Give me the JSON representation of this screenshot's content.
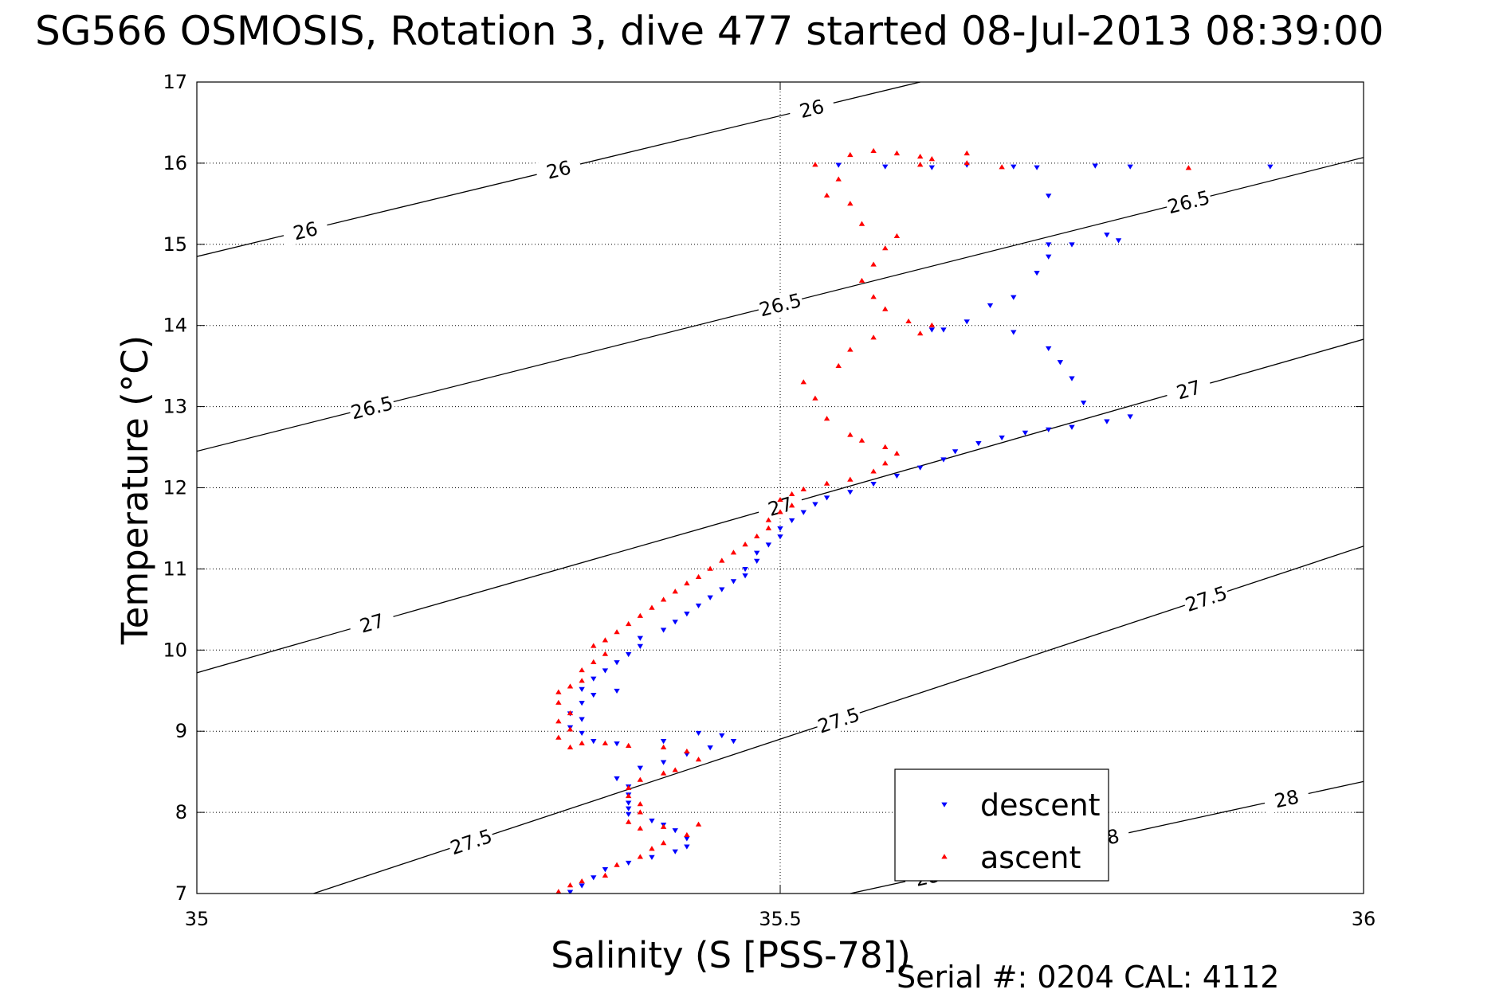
{
  "title": "SG566 OSMOSIS, Rotation 3, dive 477 started 08-Jul-2013 08:39:00",
  "footer": "Serial #: 0204  CAL: 4112",
  "colors": {
    "descent": "#0000ff",
    "ascent": "#ff0000",
    "axis": "#000000",
    "grid": "#000000"
  },
  "chart_data": {
    "type": "scatter",
    "xlabel": "Salinity (S [PSS-78])",
    "ylabel": "Temperature (°C)",
    "xlim": [
      35,
      36
    ],
    "ylim": [
      7,
      17
    ],
    "x_ticks": [
      35,
      35.5,
      36
    ],
    "x_tick_labels": [
      "35",
      "35.5",
      "36"
    ],
    "y_ticks": [
      7,
      8,
      9,
      10,
      11,
      12,
      13,
      14,
      15,
      16,
      17
    ],
    "y_tick_labels": [
      "7",
      "8",
      "9",
      "10",
      "11",
      "12",
      "13",
      "14",
      "15",
      "16",
      "17"
    ],
    "grid": true,
    "legend_position": "bottom-right",
    "density_contours": [
      {
        "sigma": 26,
        "label": "26",
        "points": [
          [
            35,
            14.85
          ],
          [
            35.62,
            17
          ]
        ]
      },
      {
        "sigma": 26.5,
        "label": "26.5",
        "points": [
          [
            35,
            12.45
          ],
          [
            36,
            16.07
          ]
        ]
      },
      {
        "sigma": 27,
        "label": "27",
        "points": [
          [
            35,
            9.72
          ],
          [
            36,
            13.83
          ]
        ]
      },
      {
        "sigma": 27.5,
        "label": "27.5",
        "points": [
          [
            35.1,
            7
          ],
          [
            36,
            11.28
          ]
        ]
      },
      {
        "sigma": 28,
        "label": "28",
        "points": [
          [
            35.56,
            7
          ],
          [
            36,
            8.38
          ]
        ]
      }
    ],
    "series": [
      {
        "name": "descent",
        "marker": "triangle-down",
        "points": [
          [
            35.32,
            7.02
          ],
          [
            35.33,
            7.1
          ],
          [
            35.34,
            7.2
          ],
          [
            35.35,
            7.3
          ],
          [
            35.37,
            7.38
          ],
          [
            35.39,
            7.45
          ],
          [
            35.41,
            7.52
          ],
          [
            35.42,
            7.58
          ],
          [
            35.42,
            7.68
          ],
          [
            35.41,
            7.78
          ],
          [
            35.4,
            7.85
          ],
          [
            35.39,
            7.9
          ],
          [
            35.37,
            7.98
          ],
          [
            35.37,
            8.05
          ],
          [
            35.37,
            8.12
          ],
          [
            35.37,
            8.22
          ],
          [
            35.37,
            8.32
          ],
          [
            35.36,
            8.42
          ],
          [
            35.38,
            8.55
          ],
          [
            35.4,
            8.62
          ],
          [
            35.42,
            8.72
          ],
          [
            35.44,
            8.8
          ],
          [
            35.46,
            8.88
          ],
          [
            35.45,
            8.95
          ],
          [
            35.43,
            8.98
          ],
          [
            35.4,
            8.88
          ],
          [
            35.36,
            8.85
          ],
          [
            35.34,
            8.88
          ],
          [
            35.33,
            8.98
          ],
          [
            35.32,
            9.05
          ],
          [
            35.33,
            9.15
          ],
          [
            35.32,
            9.22
          ],
          [
            35.33,
            9.35
          ],
          [
            35.34,
            9.45
          ],
          [
            35.36,
            9.5
          ],
          [
            35.33,
            9.52
          ],
          [
            35.34,
            9.65
          ],
          [
            35.35,
            9.75
          ],
          [
            35.36,
            9.85
          ],
          [
            35.37,
            9.95
          ],
          [
            35.38,
            10.05
          ],
          [
            35.38,
            10.15
          ],
          [
            35.4,
            10.25
          ],
          [
            35.41,
            10.35
          ],
          [
            35.42,
            10.45
          ],
          [
            35.43,
            10.55
          ],
          [
            35.44,
            10.65
          ],
          [
            35.45,
            10.75
          ],
          [
            35.46,
            10.85
          ],
          [
            35.47,
            10.92
          ],
          [
            35.47,
            11.0
          ],
          [
            35.48,
            11.1
          ],
          [
            35.48,
            11.2
          ],
          [
            35.49,
            11.3
          ],
          [
            35.5,
            11.4
          ],
          [
            35.5,
            11.5
          ],
          [
            35.51,
            11.6
          ],
          [
            35.52,
            11.7
          ],
          [
            35.53,
            11.8
          ],
          [
            35.54,
            11.88
          ],
          [
            35.56,
            11.95
          ],
          [
            35.58,
            12.05
          ],
          [
            35.6,
            12.15
          ],
          [
            35.62,
            12.25
          ],
          [
            35.64,
            12.35
          ],
          [
            35.65,
            12.45
          ],
          [
            35.67,
            12.55
          ],
          [
            35.69,
            12.62
          ],
          [
            35.71,
            12.68
          ],
          [
            35.73,
            12.72
          ],
          [
            35.75,
            12.75
          ],
          [
            35.78,
            12.82
          ],
          [
            35.8,
            12.88
          ],
          [
            35.76,
            13.05
          ],
          [
            35.75,
            13.35
          ],
          [
            35.74,
            13.55
          ],
          [
            35.73,
            13.72
          ],
          [
            35.7,
            13.92
          ],
          [
            35.63,
            13.95
          ],
          [
            35.64,
            13.95
          ],
          [
            35.66,
            14.05
          ],
          [
            35.68,
            14.25
          ],
          [
            35.7,
            14.35
          ],
          [
            35.72,
            14.65
          ],
          [
            35.73,
            14.85
          ],
          [
            35.75,
            15.0
          ],
          [
            35.78,
            15.12
          ],
          [
            35.79,
            15.05
          ],
          [
            35.73,
            15.0
          ],
          [
            35.73,
            15.6
          ],
          [
            35.72,
            15.95
          ],
          [
            35.7,
            15.96
          ],
          [
            35.66,
            15.98
          ],
          [
            35.63,
            15.95
          ],
          [
            35.59,
            15.96
          ],
          [
            35.55,
            15.98
          ],
          [
            35.8,
            15.96
          ],
          [
            35.77,
            15.97
          ],
          [
            35.92,
            15.96
          ]
        ]
      },
      {
        "name": "ascent",
        "marker": "triangle-up",
        "points": [
          [
            35.31,
            7.02
          ],
          [
            35.32,
            7.1
          ],
          [
            35.33,
            7.15
          ],
          [
            35.35,
            7.22
          ],
          [
            35.36,
            7.35
          ],
          [
            35.38,
            7.45
          ],
          [
            35.39,
            7.55
          ],
          [
            35.4,
            7.62
          ],
          [
            35.42,
            7.72
          ],
          [
            35.43,
            7.85
          ],
          [
            35.4,
            7.82
          ],
          [
            35.38,
            7.8
          ],
          [
            35.37,
            7.88
          ],
          [
            35.38,
            8.0
          ],
          [
            35.38,
            8.1
          ],
          [
            35.37,
            8.2
          ],
          [
            35.37,
            8.3
          ],
          [
            35.38,
            8.4
          ],
          [
            35.4,
            8.48
          ],
          [
            35.41,
            8.52
          ],
          [
            35.43,
            8.65
          ],
          [
            35.42,
            8.75
          ],
          [
            35.4,
            8.8
          ],
          [
            35.37,
            8.82
          ],
          [
            35.35,
            8.85
          ],
          [
            35.33,
            8.85
          ],
          [
            35.32,
            8.8
          ],
          [
            35.31,
            8.92
          ],
          [
            35.32,
            9.02
          ],
          [
            35.31,
            9.12
          ],
          [
            35.32,
            9.22
          ],
          [
            35.31,
            9.35
          ],
          [
            35.31,
            9.48
          ],
          [
            35.32,
            9.55
          ],
          [
            35.33,
            9.62
          ],
          [
            35.33,
            9.75
          ],
          [
            35.34,
            9.85
          ],
          [
            35.35,
            9.95
          ],
          [
            35.34,
            10.05
          ],
          [
            35.35,
            10.12
          ],
          [
            35.36,
            10.22
          ],
          [
            35.37,
            10.32
          ],
          [
            35.38,
            10.42
          ],
          [
            35.39,
            10.52
          ],
          [
            35.4,
            10.62
          ],
          [
            35.41,
            10.72
          ],
          [
            35.42,
            10.82
          ],
          [
            35.43,
            10.9
          ],
          [
            35.44,
            11.0
          ],
          [
            35.45,
            11.1
          ],
          [
            35.46,
            11.2
          ],
          [
            35.47,
            11.3
          ],
          [
            35.48,
            11.4
          ],
          [
            35.49,
            11.5
          ],
          [
            35.49,
            11.6
          ],
          [
            35.5,
            11.7
          ],
          [
            35.51,
            11.78
          ],
          [
            35.5,
            11.85
          ],
          [
            35.51,
            11.92
          ],
          [
            35.52,
            11.98
          ],
          [
            35.54,
            12.05
          ],
          [
            35.56,
            12.1
          ],
          [
            35.58,
            12.2
          ],
          [
            35.59,
            12.3
          ],
          [
            35.6,
            12.42
          ],
          [
            35.59,
            12.5
          ],
          [
            35.57,
            12.58
          ],
          [
            35.56,
            12.65
          ],
          [
            35.54,
            12.85
          ],
          [
            35.53,
            13.1
          ],
          [
            35.52,
            13.3
          ],
          [
            35.55,
            13.5
          ],
          [
            35.56,
            13.7
          ],
          [
            35.58,
            13.85
          ],
          [
            35.62,
            13.9
          ],
          [
            35.63,
            14.0
          ],
          [
            35.61,
            14.05
          ],
          [
            35.59,
            14.2
          ],
          [
            35.58,
            14.35
          ],
          [
            35.57,
            14.55
          ],
          [
            35.58,
            14.75
          ],
          [
            35.59,
            14.95
          ],
          [
            35.6,
            15.1
          ],
          [
            35.57,
            15.25
          ],
          [
            35.56,
            15.5
          ],
          [
            35.54,
            15.6
          ],
          [
            35.55,
            15.8
          ],
          [
            35.53,
            15.98
          ],
          [
            35.56,
            16.1
          ],
          [
            35.58,
            16.15
          ],
          [
            35.6,
            16.12
          ],
          [
            35.62,
            16.08
          ],
          [
            35.63,
            16.05
          ],
          [
            35.66,
            16.0
          ],
          [
            35.69,
            15.95
          ],
          [
            35.85,
            15.94
          ],
          [
            35.66,
            16.12
          ],
          [
            35.62,
            15.98
          ]
        ]
      }
    ]
  }
}
